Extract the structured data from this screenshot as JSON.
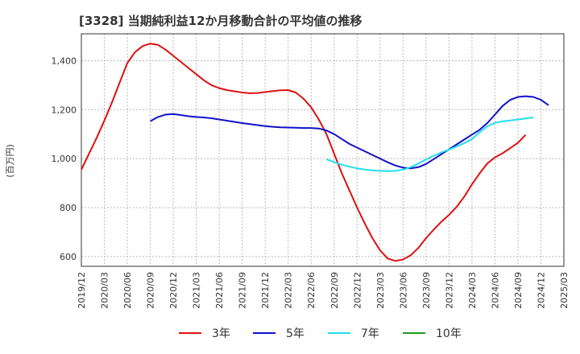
{
  "chart_data": {
    "type": "line",
    "title": "[3328]  当期純利益12か月移動合計の平均値の推移",
    "ylabel": "(百万円)",
    "ylim": [
      560,
      1510
    ],
    "yticks": [
      600,
      800,
      1000,
      1200,
      1400
    ],
    "ytick_labels": [
      "600",
      "800",
      "1,000",
      "1,200",
      "1,400"
    ],
    "grid": true,
    "legend_position": "bottom",
    "x_tick_labels": [
      "2019/12",
      "2020/03",
      "2020/06",
      "2020/09",
      "2020/12",
      "2021/03",
      "2021/06",
      "2021/09",
      "2021/12",
      "2022/03",
      "2022/06",
      "2022/09",
      "2022/12",
      "2023/03",
      "2023/06",
      "2023/09",
      "2023/12",
      "2024/03",
      "2024/06",
      "2024/09",
      "2024/12",
      "2025/03"
    ],
    "x_start": "2019/12",
    "series": [
      {
        "name": "3年",
        "color": "#dd1111",
        "start": "2019/12",
        "values": [
          955,
          1020,
          1085,
          1155,
          1230,
          1310,
          1390,
          1435,
          1460,
          1470,
          1465,
          1445,
          1420,
          1395,
          1370,
          1345,
          1320,
          1300,
          1288,
          1280,
          1275,
          1270,
          1267,
          1268,
          1272,
          1276,
          1279,
          1280,
          1270,
          1245,
          1210,
          1160,
          1100,
          1020,
          940,
          870,
          800,
          735,
          675,
          625,
          592,
          582,
          588,
          605,
          635,
          675,
          710,
          742,
          770,
          803,
          845,
          895,
          940,
          980,
          1005,
          1022,
          1043,
          1065,
          1097
        ]
      },
      {
        "name": "5年",
        "color": "#1111cc",
        "start": "2020/09",
        "values": [
          1153,
          1170,
          1180,
          1182,
          1178,
          1173,
          1170,
          1168,
          1165,
          1160,
          1155,
          1150,
          1145,
          1141,
          1137,
          1133,
          1130,
          1128,
          1127,
          1126,
          1125,
          1125,
          1123,
          1115,
          1100,
          1080,
          1060,
          1045,
          1030,
          1015,
          1000,
          985,
          972,
          963,
          960,
          965,
          978,
          998,
          1018,
          1038,
          1058,
          1078,
          1098,
          1118,
          1145,
          1180,
          1215,
          1240,
          1252,
          1255,
          1252,
          1240,
          1218
        ]
      },
      {
        "name": "7年",
        "color": "#22ddee",
        "start": "2022/08",
        "values": [
          997,
          986,
          975,
          967,
          960,
          955,
          952,
          950,
          949,
          950,
          955,
          965,
          980,
          997,
          1012,
          1025,
          1037,
          1050,
          1063,
          1080,
          1108,
          1132,
          1146,
          1152,
          1156,
          1160,
          1164,
          1168
        ]
      },
      {
        "name": "10年",
        "color": "#229922",
        "start": "2022/08",
        "values": []
      }
    ]
  }
}
